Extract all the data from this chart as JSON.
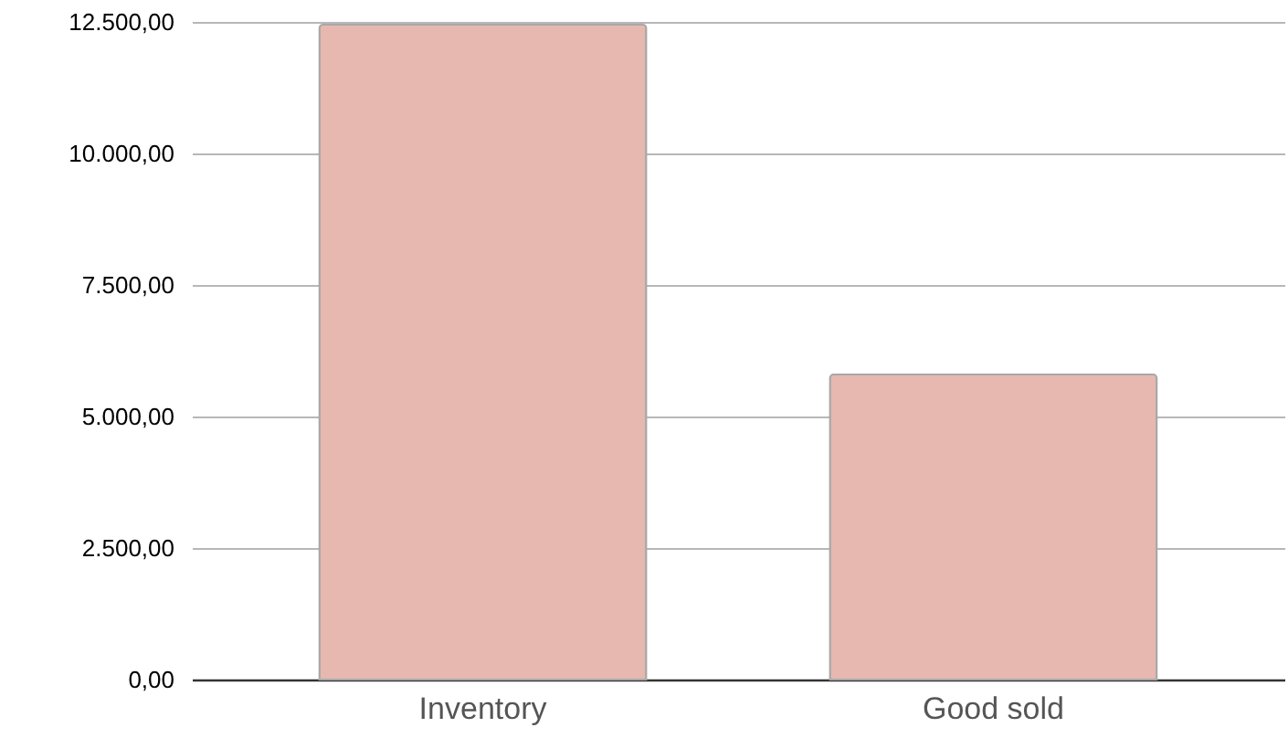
{
  "chart_data": {
    "type": "bar",
    "categories": [
      "Inventory",
      "Good sold"
    ],
    "values": [
      12450,
      5800
    ],
    "color": "#e6b8af",
    "ylim": [
      0,
      12500
    ],
    "yticks": [
      {
        "value": 0,
        "label": "0,00"
      },
      {
        "value": 2500,
        "label": "2.500,00"
      },
      {
        "value": 5000,
        "label": "5.000,00"
      },
      {
        "value": 7500,
        "label": "7.500,00"
      },
      {
        "value": 10000,
        "label": "10.000,00"
      },
      {
        "value": 12500,
        "label": "12.500,00"
      }
    ],
    "grid": "y"
  }
}
